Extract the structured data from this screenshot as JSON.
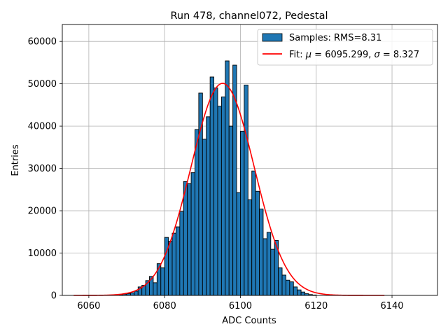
{
  "chart_data": {
    "type": "bar",
    "title": "Run 478, channel072, Pedestal",
    "xlabel": "ADC Counts",
    "ylabel": "Entries",
    "xlim": [
      6053,
      6152
    ],
    "ylim": [
      0,
      64000
    ],
    "xticks": [
      6060,
      6080,
      6100,
      6120,
      6140
    ],
    "yticks": [
      0,
      10000,
      20000,
      30000,
      40000,
      50000,
      60000
    ],
    "grid": true,
    "legend_position": "top-right",
    "bar_color": "#1f77b4",
    "fit_color": "#ff0000",
    "bin_width": 1,
    "bins": [
      {
        "x": 6068,
        "y": 200
      },
      {
        "x": 6069,
        "y": 300
      },
      {
        "x": 6070,
        "y": 400
      },
      {
        "x": 6071,
        "y": 600
      },
      {
        "x": 6072,
        "y": 1000
      },
      {
        "x": 6073,
        "y": 2000
      },
      {
        "x": 6074,
        "y": 2400
      },
      {
        "x": 6075,
        "y": 3500
      },
      {
        "x": 6076,
        "y": 4500
      },
      {
        "x": 6077,
        "y": 3000
      },
      {
        "x": 6078,
        "y": 7500
      },
      {
        "x": 6079,
        "y": 6500
      },
      {
        "x": 6080,
        "y": 13700
      },
      {
        "x": 6081,
        "y": 12800
      },
      {
        "x": 6082,
        "y": 14700
      },
      {
        "x": 6083,
        "y": 16200
      },
      {
        "x": 6084,
        "y": 19800
      },
      {
        "x": 6085,
        "y": 26900
      },
      {
        "x": 6086,
        "y": 26400
      },
      {
        "x": 6087,
        "y": 29000
      },
      {
        "x": 6088,
        "y": 39200
      },
      {
        "x": 6089,
        "y": 47800
      },
      {
        "x": 6090,
        "y": 36900
      },
      {
        "x": 6091,
        "y": 42200
      },
      {
        "x": 6092,
        "y": 51600
      },
      {
        "x": 6093,
        "y": 49000
      },
      {
        "x": 6094,
        "y": 44700
      },
      {
        "x": 6095,
        "y": 46900
      },
      {
        "x": 6096,
        "y": 55400
      },
      {
        "x": 6097,
        "y": 40000
      },
      {
        "x": 6098,
        "y": 54400
      },
      {
        "x": 6099,
        "y": 24300
      },
      {
        "x": 6100,
        "y": 38800
      },
      {
        "x": 6101,
        "y": 49700
      },
      {
        "x": 6102,
        "y": 22600
      },
      {
        "x": 6103,
        "y": 29400
      },
      {
        "x": 6104,
        "y": 24600
      },
      {
        "x": 6105,
        "y": 20400
      },
      {
        "x": 6106,
        "y": 13400
      },
      {
        "x": 6107,
        "y": 14900
      },
      {
        "x": 6108,
        "y": 10900
      },
      {
        "x": 6109,
        "y": 13000
      },
      {
        "x": 6110,
        "y": 6500
      },
      {
        "x": 6111,
        "y": 4800
      },
      {
        "x": 6112,
        "y": 3600
      },
      {
        "x": 6113,
        "y": 3200
      },
      {
        "x": 6114,
        "y": 2000
      },
      {
        "x": 6115,
        "y": 1300
      },
      {
        "x": 6116,
        "y": 800
      },
      {
        "x": 6117,
        "y": 400
      },
      {
        "x": 6118,
        "y": 200
      },
      {
        "x": 6119,
        "y": 100
      }
    ],
    "fit": {
      "mu": 6095.299,
      "sigma": 8.327,
      "amplitude": 50100,
      "x_range": [
        6056,
        6138
      ]
    },
    "legend": {
      "samples_label": "Samples: RMS=8.31",
      "fit_label_prefix": "Fit: ",
      "fit_mu_symbol": "μ",
      "fit_mu_text": " = 6095.299, ",
      "fit_sigma_symbol": "σ",
      "fit_sigma_text": " = 8.327"
    }
  }
}
